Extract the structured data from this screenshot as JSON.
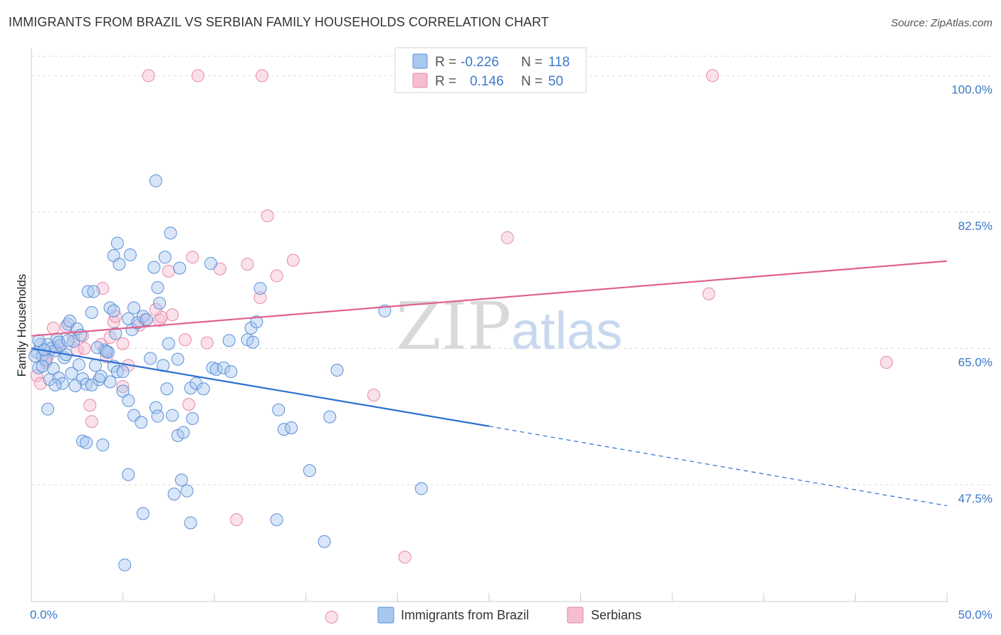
{
  "header": {
    "title": "IMMIGRANTS FROM BRAZIL VS SERBIAN FAMILY HOUSEHOLDS CORRELATION CHART",
    "source": "Source: ZipAtlas.com"
  },
  "watermark": {
    "zip": "ZIP",
    "atlas": "atlas"
  },
  "colors": {
    "blue_fill": "#a9c8ef",
    "blue_stroke": "#5b8fd6",
    "blue_line": "#2b6fd0",
    "pink_fill": "#f6bcd0",
    "pink_stroke": "#e48aab",
    "pink_line": "#e0608e",
    "grid": "#dddddd",
    "axis_text": "#3b78c9"
  },
  "legend": {
    "rows": [
      {
        "r_label": "R =",
        "r_value": "-0.226",
        "n_label": "N =",
        "n_value": "118"
      },
      {
        "r_label": "R =",
        "r_value": "0.146",
        "n_label": "N =",
        "n_value": "50"
      }
    ]
  },
  "chart_data": {
    "type": "scatter",
    "title": "IMMIGRANTS FROM BRAZIL VS SERBIAN FAMILY HOUSEHOLDS CORRELATION CHART",
    "xlabel": "",
    "ylabel": "Family Households",
    "xlim": [
      0,
      50
    ],
    "ylim": [
      32.5,
      103.5
    ],
    "x_tick_labels": [
      "0.0%",
      "50.0%"
    ],
    "y_ticks": [
      47.5,
      65.0,
      82.5,
      100.0
    ],
    "y_tick_labels": [
      "47.5%",
      "65.0%",
      "82.5%",
      "100.0%"
    ],
    "grid": true,
    "legend_position": "top-center",
    "series": [
      {
        "name": "Immigrants from Brazil",
        "color": "blue",
        "r": -0.226,
        "n": 118,
        "trend": {
          "x0": 0,
          "y0": 65.0,
          "x1": 25,
          "y1": 55.0,
          "dash_to_x": 50,
          "dash_to_y": 44.8
        },
        "points": [
          [
            0.3,
            64.5
          ],
          [
            0.5,
            65.5
          ],
          [
            0.6,
            64.0
          ],
          [
            0.4,
            62.5
          ],
          [
            0.8,
            63.5
          ],
          [
            0.9,
            65.5
          ],
          [
            1.1,
            65.0
          ],
          [
            1.3,
            64.7
          ],
          [
            1.4,
            66.2
          ],
          [
            1.6,
            65.4
          ],
          [
            1.8,
            63.8
          ],
          [
            2.0,
            68.1
          ],
          [
            2.1,
            68.5
          ],
          [
            2.3,
            65.9
          ],
          [
            2.5,
            67.5
          ],
          [
            1.0,
            61.0
          ],
          [
            1.2,
            62.4
          ],
          [
            1.5,
            61.2
          ],
          [
            1.7,
            60.5
          ],
          [
            2.2,
            61.8
          ],
          [
            2.6,
            62.9
          ],
          [
            2.8,
            61.1
          ],
          [
            3.0,
            60.4
          ],
          [
            3.3,
            60.3
          ],
          [
            3.5,
            62.8
          ],
          [
            3.7,
            61.0
          ],
          [
            4.0,
            64.8
          ],
          [
            4.2,
            64.5
          ],
          [
            4.3,
            60.7
          ],
          [
            4.5,
            62.7
          ],
          [
            0.9,
            57.2
          ],
          [
            2.8,
            53.1
          ],
          [
            3.0,
            52.9
          ],
          [
            3.9,
            52.6
          ],
          [
            3.1,
            72.3
          ],
          [
            3.4,
            72.3
          ],
          [
            3.3,
            69.6
          ],
          [
            4.3,
            70.2
          ],
          [
            4.5,
            69.8
          ],
          [
            4.6,
            66.9
          ],
          [
            4.7,
            62.0
          ],
          [
            5.0,
            62.0
          ],
          [
            5.0,
            59.5
          ],
          [
            5.3,
            58.3
          ],
          [
            5.6,
            56.4
          ],
          [
            6.0,
            55.5
          ],
          [
            5.5,
            67.4
          ],
          [
            5.3,
            68.8
          ],
          [
            5.8,
            68.3
          ],
          [
            6.1,
            69.1
          ],
          [
            5.6,
            70.2
          ],
          [
            6.3,
            68.7
          ],
          [
            6.5,
            63.7
          ],
          [
            6.8,
            57.4
          ],
          [
            6.9,
            56.3
          ],
          [
            7.2,
            62.8
          ],
          [
            7.4,
            59.8
          ],
          [
            7.7,
            56.4
          ],
          [
            8.0,
            53.8
          ],
          [
            8.3,
            54.2
          ],
          [
            4.5,
            76.9
          ],
          [
            4.7,
            78.5
          ],
          [
            4.8,
            75.8
          ],
          [
            5.4,
            77.0
          ],
          [
            6.7,
            75.4
          ],
          [
            6.9,
            72.8
          ],
          [
            7.0,
            70.8
          ],
          [
            7.3,
            76.7
          ],
          [
            7.6,
            79.8
          ],
          [
            8.1,
            75.3
          ],
          [
            6.8,
            86.5
          ],
          [
            7.5,
            65.6
          ],
          [
            8.0,
            63.6
          ],
          [
            8.7,
            59.9
          ],
          [
            8.8,
            56.0
          ],
          [
            9.0,
            60.5
          ],
          [
            9.4,
            59.8
          ],
          [
            8.2,
            48.1
          ],
          [
            8.5,
            46.7
          ],
          [
            7.8,
            46.3
          ],
          [
            6.1,
            43.8
          ],
          [
            5.3,
            48.8
          ],
          [
            5.1,
            37.2
          ],
          [
            8.7,
            42.6
          ],
          [
            9.8,
            75.9
          ],
          [
            9.9,
            62.5
          ],
          [
            10.1,
            62.3
          ],
          [
            10.5,
            62.5
          ],
          [
            10.9,
            62.0
          ],
          [
            10.8,
            66.0
          ],
          [
            11.8,
            66.1
          ],
          [
            12.0,
            67.6
          ],
          [
            12.1,
            65.8
          ],
          [
            12.3,
            68.4
          ],
          [
            12.5,
            72.7
          ],
          [
            13.5,
            57.1
          ],
          [
            13.8,
            54.6
          ],
          [
            14.2,
            54.8
          ],
          [
            15.2,
            49.3
          ],
          [
            13.4,
            43.0
          ],
          [
            16.0,
            40.2
          ],
          [
            16.3,
            56.2
          ],
          [
            16.7,
            62.2
          ],
          [
            19.3,
            69.8
          ],
          [
            21.3,
            47.0
          ],
          [
            0.2,
            64.0
          ],
          [
            0.4,
            66.0
          ],
          [
            0.7,
            64.8
          ],
          [
            1.9,
            64.2
          ],
          [
            2.7,
            66.7
          ],
          [
            3.6,
            65.1
          ],
          [
            4.1,
            64.6
          ],
          [
            1.3,
            60.3
          ],
          [
            2.4,
            60.2
          ],
          [
            3.8,
            61.4
          ],
          [
            0.6,
            62.7
          ],
          [
            1.5,
            65.8
          ],
          [
            2.0,
            66.0
          ]
        ]
      },
      {
        "name": "Serbians",
        "color": "pink",
        "r": 0.146,
        "n": 50,
        "trend": {
          "x0": 0,
          "y0": 66.6,
          "x1": 50,
          "y1": 76.2
        },
        "points": [
          [
            0.3,
            61.5
          ],
          [
            0.5,
            60.5
          ],
          [
            0.8,
            63.2
          ],
          [
            1.2,
            67.6
          ],
          [
            1.5,
            65.3
          ],
          [
            1.9,
            67.8
          ],
          [
            2.3,
            66.5
          ],
          [
            2.5,
            64.8
          ],
          [
            2.8,
            66.6
          ],
          [
            3.2,
            57.7
          ],
          [
            3.3,
            55.6
          ],
          [
            3.8,
            65.5
          ],
          [
            3.9,
            72.7
          ],
          [
            4.1,
            63.9
          ],
          [
            4.3,
            66.4
          ],
          [
            4.5,
            68.4
          ],
          [
            4.6,
            69.1
          ],
          [
            5.0,
            65.6
          ],
          [
            5.0,
            60.1
          ],
          [
            5.3,
            62.8
          ],
          [
            5.9,
            68.0
          ],
          [
            6.2,
            68.7
          ],
          [
            7.0,
            68.6
          ],
          [
            7.1,
            69.0
          ],
          [
            7.5,
            74.9
          ],
          [
            7.7,
            69.3
          ],
          [
            8.4,
            66.1
          ],
          [
            8.6,
            57.8
          ],
          [
            8.8,
            76.7
          ],
          [
            9.6,
            65.7
          ],
          [
            10.3,
            75.2
          ],
          [
            11.2,
            43.0
          ],
          [
            11.8,
            75.8
          ],
          [
            12.5,
            71.5
          ],
          [
            12.9,
            82.0
          ],
          [
            13.4,
            74.3
          ],
          [
            14.3,
            76.3
          ],
          [
            16.4,
            30.5
          ],
          [
            18.7,
            59.0
          ],
          [
            20.4,
            38.2
          ],
          [
            6.4,
            100.0
          ],
          [
            9.1,
            100.0
          ],
          [
            12.6,
            100.0
          ],
          [
            37.0,
            72.0
          ],
          [
            37.2,
            100.0
          ],
          [
            26.0,
            79.2
          ],
          [
            46.7,
            63.2
          ],
          [
            6.8,
            70.0
          ],
          [
            2.9,
            65.0
          ],
          [
            0.9,
            64.0
          ]
        ]
      }
    ]
  },
  "bottom_legend": {
    "items": [
      {
        "label": "Immigrants from Brazil"
      },
      {
        "label": "Serbians"
      }
    ]
  }
}
